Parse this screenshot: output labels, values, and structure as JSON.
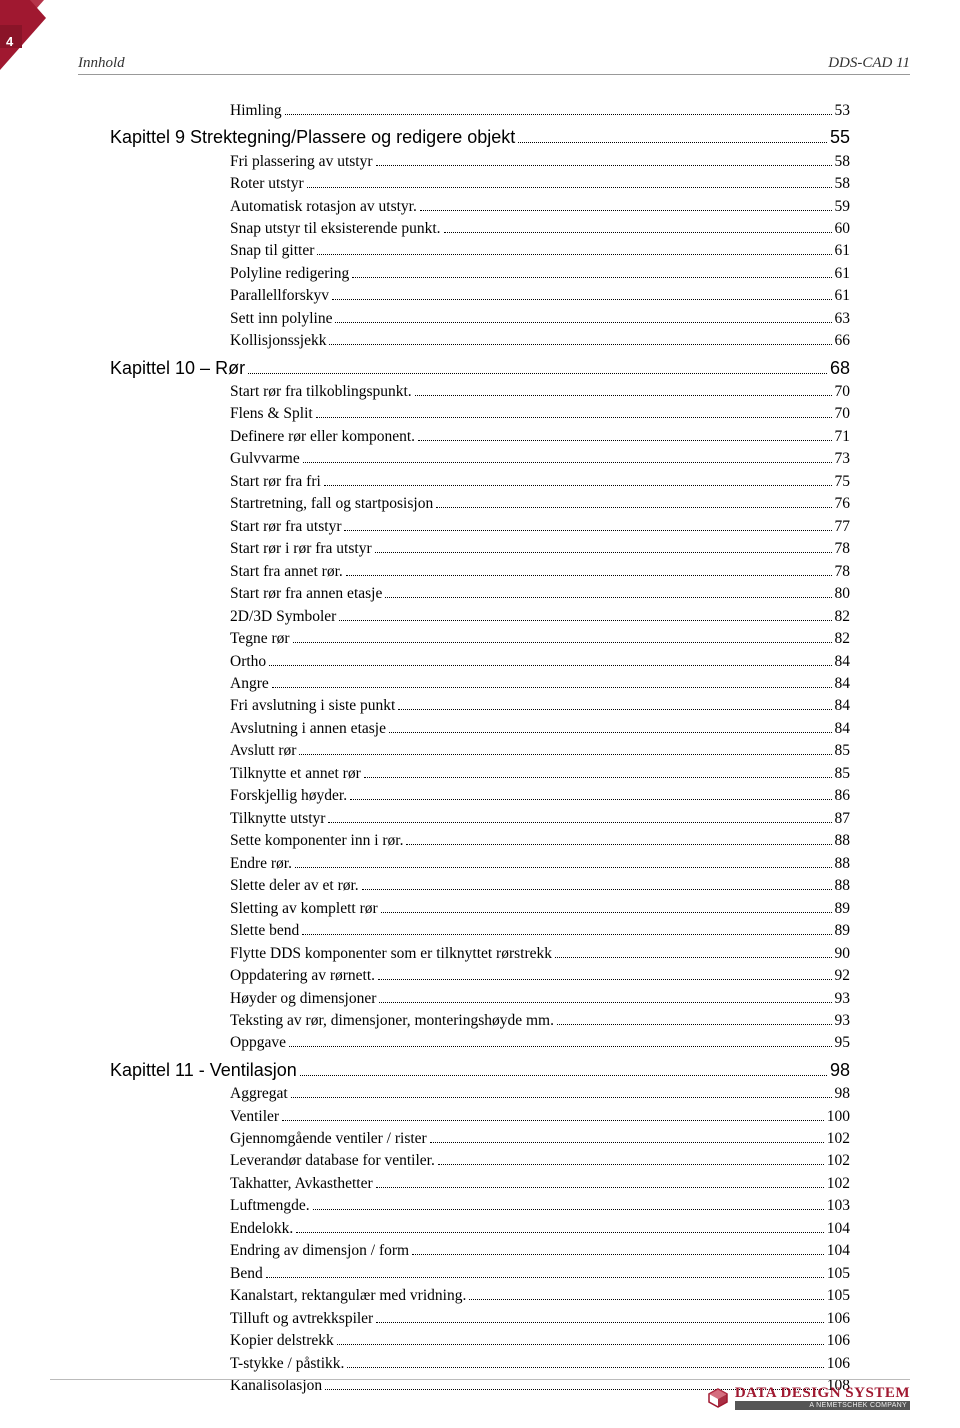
{
  "page_number": "4",
  "header_left": "Innhold",
  "header_right": "DDS-CAD 11",
  "corner_color": "#a01830",
  "toc": [
    {
      "level": "sub",
      "title": "Himling",
      "page": "53"
    },
    {
      "level": "chapter",
      "title": "Kapittel 9   Strektegning/Plassere og redigere objekt",
      "page": "55"
    },
    {
      "level": "sub",
      "title": "Fri plassering av utstyr",
      "page": "58"
    },
    {
      "level": "sub",
      "title": "Roter utstyr",
      "page": "58"
    },
    {
      "level": "sub",
      "title": "Automatisk rotasjon av utstyr.",
      "page": "59"
    },
    {
      "level": "sub",
      "title": "Snap utstyr til eksisterende punkt.",
      "page": "60"
    },
    {
      "level": "sub",
      "title": "Snap til gitter",
      "page": "61"
    },
    {
      "level": "sub",
      "title": "Polyline redigering",
      "page": "61"
    },
    {
      "level": "sub",
      "title": "Parallellforskyv",
      "page": "61"
    },
    {
      "level": "sub",
      "title": "Sett inn polyline",
      "page": "63"
    },
    {
      "level": "sub",
      "title": "Kollisjonssjekk",
      "page": "66"
    },
    {
      "level": "chapter",
      "title": "Kapittel 10 – Rør",
      "page": "68"
    },
    {
      "level": "sub",
      "title": "Start rør fra tilkoblingspunkt.",
      "page": "70"
    },
    {
      "level": "sub",
      "title": "Flens & Split",
      "page": "70"
    },
    {
      "level": "sub",
      "title": "Definere rør eller komponent.",
      "page": "71"
    },
    {
      "level": "sub",
      "title": "Gulvvarme",
      "page": "73"
    },
    {
      "level": "sub",
      "title": "Start rør fra fri",
      "page": "75"
    },
    {
      "level": "sub",
      "title": "Startretning, fall og startposisjon",
      "page": "76"
    },
    {
      "level": "sub",
      "title": "Start rør fra utstyr",
      "page": "77"
    },
    {
      "level": "sub",
      "title": "Start rør i rør fra utstyr",
      "page": "78"
    },
    {
      "level": "sub",
      "title": "Start fra annet rør.",
      "page": "78"
    },
    {
      "level": "sub",
      "title": "Start rør fra annen etasje",
      "page": "80"
    },
    {
      "level": "sub",
      "title": "2D/3D Symboler",
      "page": "82"
    },
    {
      "level": "sub",
      "title": "Tegne rør",
      "page": "82"
    },
    {
      "level": "sub",
      "title": "Ortho",
      "page": "84"
    },
    {
      "level": "sub",
      "title": "Angre",
      "page": "84"
    },
    {
      "level": "sub",
      "title": "Fri avslutning i siste punkt",
      "page": "84"
    },
    {
      "level": "sub",
      "title": "Avslutning i annen etasje",
      "page": "84"
    },
    {
      "level": "sub",
      "title": "Avslutt rør",
      "page": "85"
    },
    {
      "level": "sub",
      "title": "Tilknytte et annet rør",
      "page": "85"
    },
    {
      "level": "sub",
      "title": "Forskjellig høyder.",
      "page": "86"
    },
    {
      "level": "sub",
      "title": "Tilknytte utstyr",
      "page": "87"
    },
    {
      "level": "sub",
      "title": "Sette komponenter inn i rør.",
      "page": "88"
    },
    {
      "level": "sub",
      "title": "Endre rør.",
      "page": "88"
    },
    {
      "level": "sub",
      "title": "Slette deler av et rør.",
      "page": "88"
    },
    {
      "level": "sub",
      "title": "Sletting av komplett rør",
      "page": "89"
    },
    {
      "level": "sub",
      "title": "Slette bend",
      "page": "89"
    },
    {
      "level": "sub",
      "title": "Flytte DDS komponenter som er tilknyttet rørstrekk",
      "page": "90"
    },
    {
      "level": "sub",
      "title": "Oppdatering av rørnett.",
      "page": "92"
    },
    {
      "level": "sub",
      "title": "Høyder og dimensjoner",
      "page": "93"
    },
    {
      "level": "sub",
      "title": "Teksting av rør, dimensjoner, monteringshøyde mm.",
      "page": "93"
    },
    {
      "level": "sub",
      "title": "Oppgave",
      "page": "95"
    },
    {
      "level": "chapter",
      "title": "Kapittel 11 - Ventilasjon",
      "page": "98"
    },
    {
      "level": "sub",
      "title": "Aggregat",
      "page": "98"
    },
    {
      "level": "sub",
      "title": "Ventiler",
      "page": "100"
    },
    {
      "level": "sub",
      "title": "Gjennomgående ventiler / rister",
      "page": "102"
    },
    {
      "level": "sub",
      "title": "Leverandør database for ventiler.",
      "page": "102"
    },
    {
      "level": "sub",
      "title": "Takhatter, Avkasthetter",
      "page": "102"
    },
    {
      "level": "sub",
      "title": "Luftmengde.",
      "page": "103"
    },
    {
      "level": "sub",
      "title": "Endelokk.",
      "page": "104"
    },
    {
      "level": "sub",
      "title": "Endring av dimensjon / form",
      "page": "104"
    },
    {
      "level": "sub",
      "title": "Bend",
      "page": "105"
    },
    {
      "level": "sub",
      "title": "Kanalstart, rektangulær med vridning.",
      "page": "105"
    },
    {
      "level": "sub",
      "title": "Tilluft og avtrekkspiler",
      "page": "106"
    },
    {
      "level": "sub",
      "title": "Kopier delstrekk",
      "page": "106"
    },
    {
      "level": "sub",
      "title": "T-stykke / påstikk.",
      "page": "106"
    },
    {
      "level": "sub",
      "title": "Kanalisolasjon",
      "page": "108"
    }
  ],
  "footer": {
    "company": "DATA DESIGN SYSTEM",
    "tagline": "A NEMETSCHEK COMPANY"
  }
}
